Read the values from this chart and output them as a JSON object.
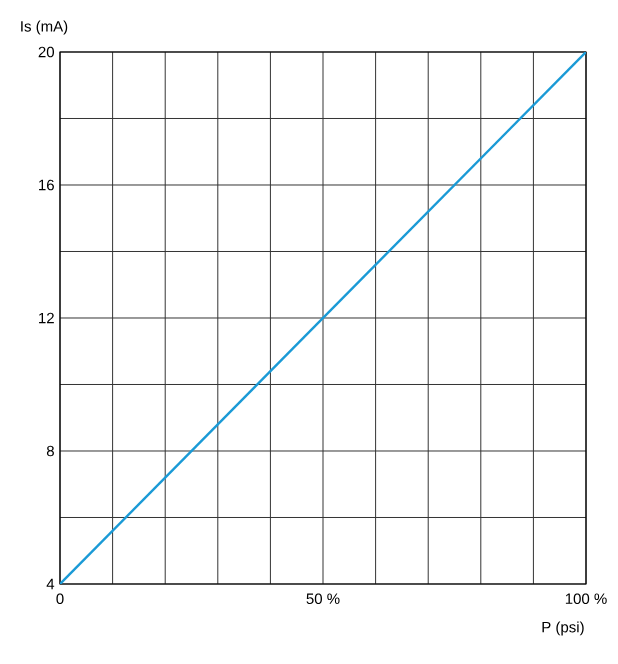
{
  "chart_data": {
    "type": "line",
    "xlabel": "P (psi)",
    "ylabel": "Is (mA)",
    "x": [
      0,
      100
    ],
    "series": [
      {
        "color": "#1a9ad6",
        "values": [
          4,
          20
        ]
      }
    ],
    "xlim": [
      0,
      100
    ],
    "ylim": [
      4,
      20
    ],
    "xticks": [
      0,
      {
        "value": 10,
        "label": null
      },
      {
        "value": 20,
        "label": null
      },
      {
        "value": 30,
        "label": null
      },
      {
        "value": 40,
        "label": null
      },
      {
        "value": 50,
        "label": "50 %"
      },
      {
        "value": 60,
        "label": null
      },
      {
        "value": 70,
        "label": null
      },
      {
        "value": 80,
        "label": null
      },
      {
        "value": 90,
        "label": null
      },
      {
        "value": 100,
        "label": "100 %"
      }
    ],
    "yticks": [
      4,
      {
        "value": 6,
        "label": null
      },
      8,
      {
        "value": 10,
        "label": null
      },
      12,
      {
        "value": 14,
        "label": null
      },
      16,
      {
        "value": 18,
        "label": null
      },
      20
    ],
    "grid": true
  }
}
